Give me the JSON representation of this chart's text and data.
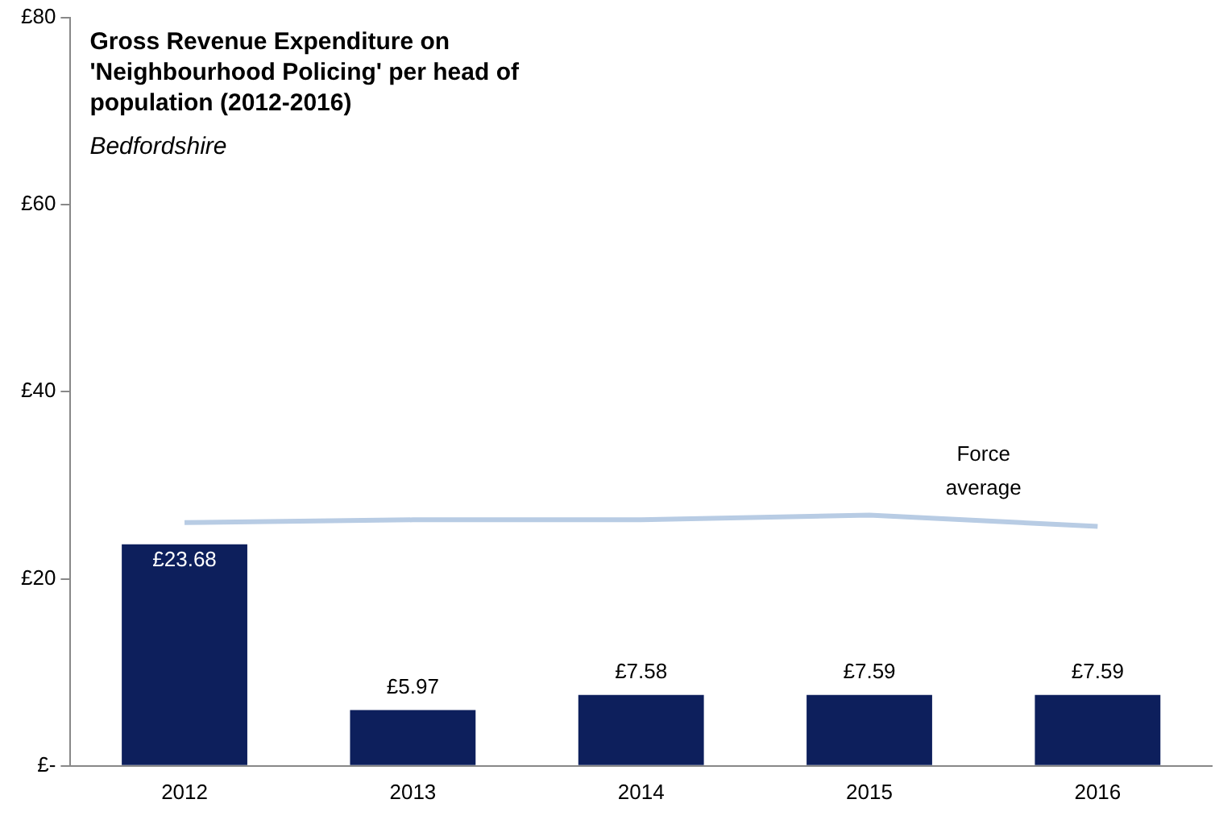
{
  "chart_data": {
    "type": "bar",
    "title": "Gross Revenue Expenditure on 'Neighbourhood Policing' per head of population (2012-2016)",
    "subtitle": "Bedfordshire",
    "categories": [
      "2012",
      "2013",
      "2014",
      "2015",
      "2016"
    ],
    "series": [
      {
        "color": "#0d1f5c",
        "values": [
          23.68,
          5.97,
          7.58,
          7.59,
          7.59
        ],
        "value_labels": [
          "£23.68",
          "£5.97",
          "£7.58",
          "£7.59",
          "£7.59"
        ]
      },
      {
        "type": "line",
        "name": "Force average",
        "color": "#b8cce4",
        "values": [
          26.0,
          26.3,
          26.3,
          26.8,
          25.6
        ]
      }
    ],
    "ylim": [
      0,
      80
    ],
    "yticks": [
      {
        "value": 0,
        "label": "£-"
      },
      {
        "value": 20,
        "label": "£20"
      },
      {
        "value": 40,
        "label": "£40"
      },
      {
        "value": 60,
        "label": "£60"
      },
      {
        "value": 80,
        "label": "£80"
      }
    ],
    "grid": false,
    "legend": false,
    "marker": "none"
  }
}
